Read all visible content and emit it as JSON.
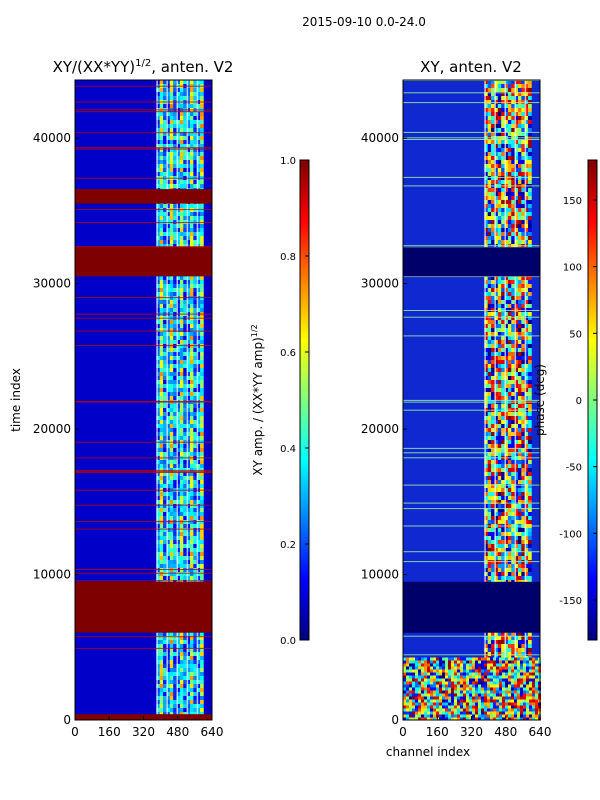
{
  "figure_title": "2015-09-10 0.0-24.0",
  "chart_data": [
    {
      "type": "heatmap",
      "title": "XY/(XX*YY)",
      "title_exponent": "1/2",
      "title_suffix": ", anten. V2",
      "xlabel": "",
      "ylabel": "time index",
      "xlim": [
        0,
        640
      ],
      "ylim": [
        0,
        44000
      ],
      "x_ticks": [
        0,
        160,
        320,
        480,
        640
      ],
      "y_ticks": [
        0,
        10000,
        20000,
        30000,
        40000
      ],
      "colorbar": {
        "label": "XY amp. / (XX*YY amp)",
        "label_exponent": "1/2",
        "range": [
          0.0,
          1.0
        ],
        "ticks": [
          "0.0",
          "0.2",
          "0.4",
          "0.6",
          "0.8",
          "1.0"
        ],
        "colormap": "jet"
      },
      "saturated_bands": [
        [
          0,
          400
        ],
        [
          6000,
          9500
        ],
        [
          30500,
          32500
        ],
        [
          35500,
          36500
        ]
      ],
      "active_channel_range": [
        380,
        600
      ]
    },
    {
      "type": "heatmap",
      "title": "XY, anten. V2",
      "xlabel": "channel index",
      "ylabel": "",
      "xlim": [
        0,
        640
      ],
      "ylim": [
        0,
        44000
      ],
      "x_ticks": [
        0,
        160,
        320,
        480,
        640
      ],
      "y_ticks": [
        0,
        10000,
        20000,
        30000,
        40000
      ],
      "colorbar": {
        "label": "phase (deg)",
        "range": [
          -180,
          180
        ],
        "ticks": [
          "-150",
          "-100",
          "-50",
          "0",
          "50",
          "100",
          "150"
        ],
        "colormap": "jet"
      },
      "dark_bands": [
        [
          6000,
          9500
        ],
        [
          30500,
          32500
        ]
      ],
      "noisy_band": [
        0,
        4300
      ],
      "active_channel_range": [
        380,
        600
      ]
    }
  ],
  "colors": {
    "jet_low": "#00007f",
    "jet_high": "#7f0000",
    "axes": "#000000"
  }
}
